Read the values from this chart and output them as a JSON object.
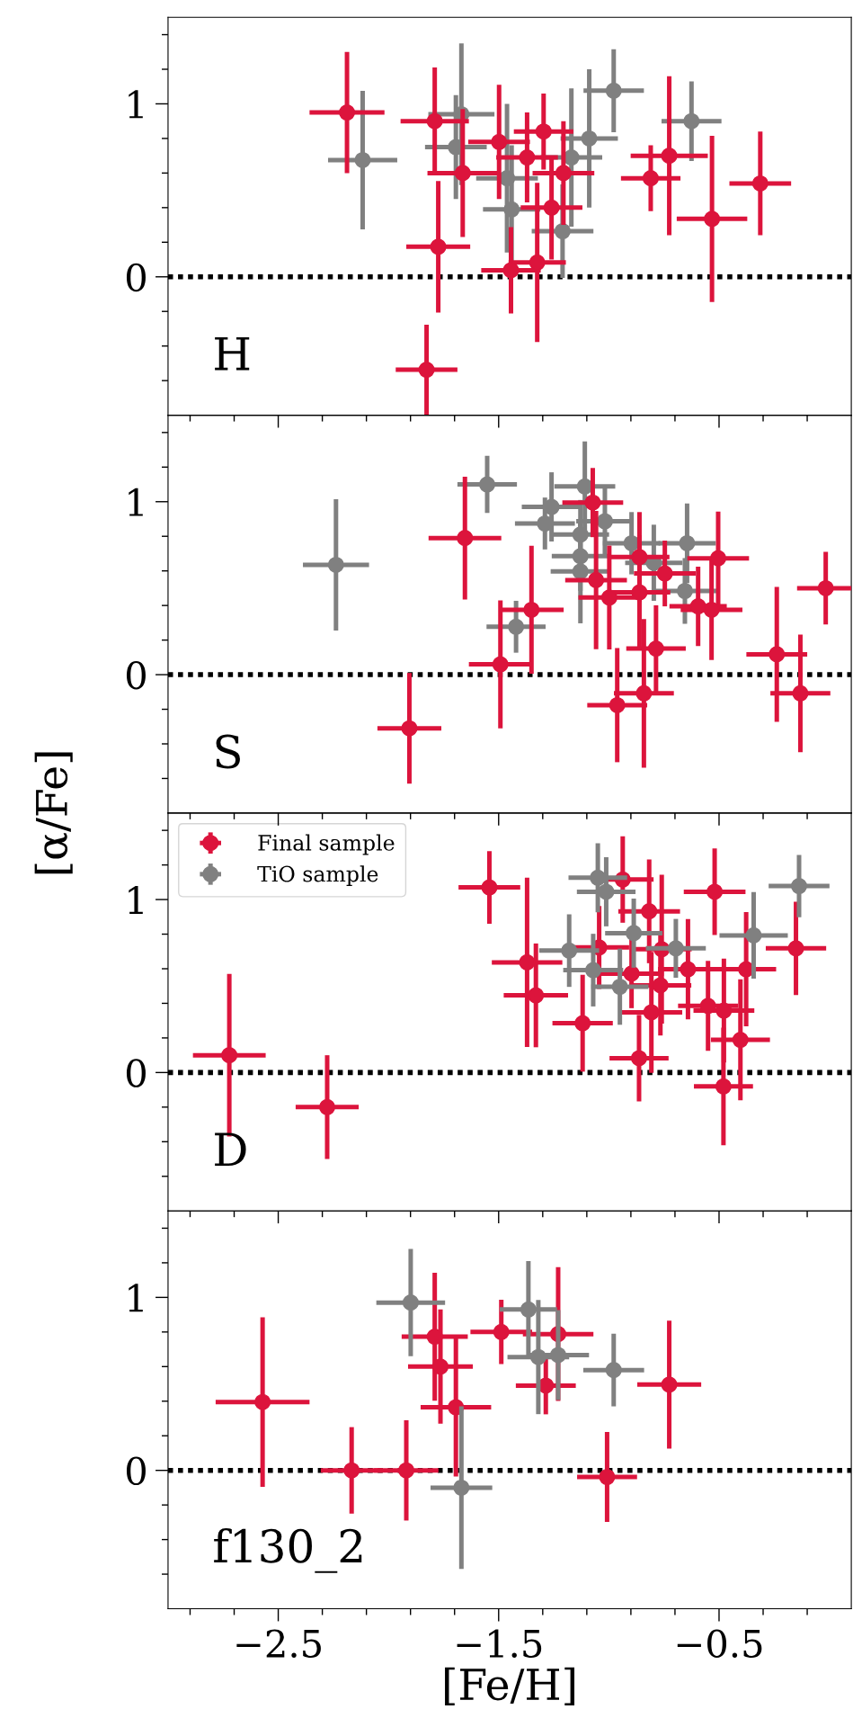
{
  "chart_data": [
    {
      "type": "scatter",
      "annotations": [
        "H"
      ],
      "xlim": [
        -3.0,
        0.1
      ],
      "ylim": [
        -0.8,
        1.5
      ],
      "tick_labels": "y",
      "marker": "circle",
      "xticks": [
        {
          "value": -2.9,
          "label": null
        },
        {
          "value": -2.7,
          "label": null
        },
        -2.5,
        {
          "value": -2.3,
          "label": null
        },
        {
          "value": -2.1,
          "label": null
        },
        {
          "value": -1.9,
          "label": null
        },
        {
          "value": -1.7,
          "label": null
        },
        -1.5,
        {
          "value": -1.3,
          "label": null
        },
        {
          "value": -1.1,
          "label": null
        },
        {
          "value": -0.9,
          "label": null
        },
        {
          "value": -0.7,
          "label": null
        },
        -0.5,
        {
          "value": -0.3,
          "label": null
        },
        {
          "value": -0.1,
          "label": null
        }
      ],
      "yticks": [
        {
          "value": -0.6,
          "label": null
        },
        {
          "value": -0.4,
          "label": null
        },
        {
          "value": -0.2,
          "label": null
        },
        0,
        {
          "value": 0.2,
          "label": null
        },
        {
          "value": 0.4,
          "label": null
        },
        {
          "value": 0.6,
          "label": null
        },
        {
          "value": 0.8,
          "label": null
        },
        1,
        {
          "value": 1.2,
          "label": null
        },
        {
          "value": 1.4,
          "label": null
        }
      ],
      "ref_lines": [
        {
          "axis": "y",
          "value": 0,
          "color": "#000000",
          "line_style": "dotted"
        }
      ],
      "series": [
        {
          "color": "#808080",
          "x": [
            -2.117,
            -1.669,
            -1.694,
            -1.441,
            -1.462,
            -1.17,
            -1.089,
            -0.978,
            -0.625,
            -1.21
          ],
          "values": [
            0.675,
            0.94,
            0.75,
            0.39,
            0.57,
            0.69,
            0.8,
            1.076,
            0.9,
            0.264
          ],
          "errors": [
            0.4,
            0.41,
            0.3,
            0.37,
            0.43,
            0.4,
            0.4,
            0.24,
            0.23,
            0.27
          ],
          "xerrors": [
            0.157,
            0.15,
            0.14,
            0.13,
            0.14,
            0.14,
            0.13,
            0.137,
            0.136,
            0.14
          ]
        },
        {
          "color": "#dc143c",
          "x": [
            -2.188,
            -1.79,
            -1.663,
            -1.774,
            -1.827,
            -1.498,
            -1.371,
            -1.296,
            -1.206,
            -1.26,
            -1.444,
            -1.325,
            -0.81,
            -0.726,
            -0.532,
            -0.313
          ],
          "values": [
            0.95,
            0.9,
            0.6,
            0.174,
            -0.537,
            0.78,
            0.69,
            0.84,
            0.6,
            0.4,
            0.038,
            0.083,
            0.57,
            0.7,
            0.335,
            0.54
          ],
          "errors": [
            0.35,
            0.31,
            0.37,
            0.38,
            0.26,
            0.33,
            0.26,
            0.22,
            0.3,
            0.3,
            0.25,
            0.46,
            0.19,
            0.46,
            0.48,
            0.3
          ],
          "xerrors": [
            0.17,
            0.155,
            0.16,
            0.145,
            0.14,
            0.14,
            0.14,
            0.135,
            0.14,
            0.14,
            0.135,
            0.13,
            0.135,
            0.175,
            0.16,
            0.14
          ]
        }
      ]
    },
    {
      "type": "scatter",
      "annotations": [
        "S"
      ],
      "xlim": [
        -3.0,
        0.1
      ],
      "ylim": [
        -0.8,
        1.5
      ],
      "tick_labels": "y",
      "marker": "circle",
      "xticks": [
        {
          "value": -2.9,
          "label": null
        },
        {
          "value": -2.7,
          "label": null
        },
        -2.5,
        {
          "value": -2.3,
          "label": null
        },
        {
          "value": -2.1,
          "label": null
        },
        {
          "value": -1.9,
          "label": null
        },
        {
          "value": -1.7,
          "label": null
        },
        -1.5,
        {
          "value": -1.3,
          "label": null
        },
        {
          "value": -1.1,
          "label": null
        },
        {
          "value": -0.9,
          "label": null
        },
        {
          "value": -0.7,
          "label": null
        },
        -0.5,
        {
          "value": -0.3,
          "label": null
        },
        {
          "value": -0.1,
          "label": null
        }
      ],
      "yticks": [
        {
          "value": -0.6,
          "label": null
        },
        {
          "value": -0.4,
          "label": null
        },
        {
          "value": -0.2,
          "label": null
        },
        0,
        {
          "value": 0.2,
          "label": null
        },
        {
          "value": 0.4,
          "label": null
        },
        {
          "value": 0.6,
          "label": null
        },
        {
          "value": 0.8,
          "label": null
        },
        1,
        {
          "value": 1.2,
          "label": null
        },
        {
          "value": 1.4,
          "label": null
        }
      ],
      "ref_lines": [
        {
          "axis": "y",
          "value": 0,
          "color": "#000000",
          "line_style": "dotted"
        }
      ],
      "series": [
        {
          "color": "#808080",
          "x": [
            -2.238,
            -1.552,
            -1.421,
            -1.26,
            -1.29,
            -1.109,
            -1.129,
            -1.129,
            -1.129,
            -1.018,
            -0.897,
            -0.796,
            -0.645,
            -0.655
          ],
          "values": [
            0.635,
            1.1,
            0.277,
            0.97,
            0.874,
            1.088,
            0.81,
            0.685,
            0.597,
            0.887,
            0.76,
            0.647,
            0.76,
            0.484
          ],
          "errors": [
            0.38,
            0.165,
            0.15,
            0.2,
            0.15,
            0.26,
            0.2,
            0.2,
            0.3,
            0.19,
            0.18,
            0.22,
            0.23,
            0.19
          ],
          "xerrors": [
            0.15,
            0.135,
            0.134,
            0.135,
            0.136,
            0.138,
            0.13,
            0.13,
            0.135,
            0.13,
            0.13,
            0.13,
            0.13,
            0.15
          ]
        },
        {
          "color": "#dc143c",
          "x": [
            -1.653,
            -1.905,
            -1.492,
            -1.351,
            -1.073,
            -1.058,
            -0.998,
            -0.861,
            -0.861,
            -0.746,
            -0.786,
            -0.962,
            -0.841,
            -0.504,
            -0.595,
            -0.534,
            -0.238,
            -0.131,
            -0.016
          ],
          "values": [
            0.79,
            -0.31,
            0.06,
            0.375,
            0.995,
            0.547,
            0.446,
            0.68,
            0.476,
            0.585,
            0.151,
            -0.176,
            -0.108,
            0.673,
            0.395,
            0.375,
            0.118,
            -0.108,
            0.5
          ],
          "errors": [
            0.355,
            0.32,
            0.37,
            0.37,
            0.2,
            0.4,
            0.3,
            0.26,
            0.33,
            0.19,
            0.25,
            0.33,
            0.43,
            0.27,
            0.23,
            0.29,
            0.39,
            0.34,
            0.21
          ],
          "xerrors": [
            0.165,
            0.145,
            0.143,
            0.146,
            0.138,
            0.14,
            0.14,
            0.136,
            0.14,
            0.14,
            0.135,
            0.136,
            0.136,
            0.14,
            0.13,
            0.14,
            0.138,
            0.136,
            0.13
          ]
        }
      ]
    },
    {
      "type": "scatter",
      "annotations": [
        "D"
      ],
      "ylabel": "[α/Fe]",
      "xlim": [
        -3.0,
        0.1
      ],
      "ylim": [
        -0.8,
        1.5
      ],
      "tick_labels": "y",
      "marker": "circle",
      "legend": "top left",
      "xticks": [
        {
          "value": -2.9,
          "label": null
        },
        {
          "value": -2.7,
          "label": null
        },
        -2.5,
        {
          "value": -2.3,
          "label": null
        },
        {
          "value": -2.1,
          "label": null
        },
        {
          "value": -1.9,
          "label": null
        },
        {
          "value": -1.7,
          "label": null
        },
        -1.5,
        {
          "value": -1.3,
          "label": null
        },
        {
          "value": -1.1,
          "label": null
        },
        {
          "value": -0.9,
          "label": null
        },
        {
          "value": -0.7,
          "label": null
        },
        -0.5,
        {
          "value": -0.3,
          "label": null
        },
        {
          "value": -0.1,
          "label": null
        }
      ],
      "yticks": [
        {
          "value": -0.6,
          "label": null
        },
        {
          "value": -0.4,
          "label": null
        },
        {
          "value": -0.2,
          "label": null
        },
        0,
        {
          "value": 0.2,
          "label": null
        },
        {
          "value": 0.4,
          "label": null
        },
        {
          "value": 0.6,
          "label": null
        },
        {
          "value": 0.8,
          "label": null
        },
        1,
        {
          "value": 1.2,
          "label": null
        },
        {
          "value": 1.4,
          "label": null
        }
      ],
      "ref_lines": [
        {
          "axis": "y",
          "value": 0,
          "color": "#000000",
          "line_style": "dotted"
        }
      ],
      "series": [
        {
          "name": "Final sample",
          "color": "#dc143c",
          "x": [
            -2.722,
            -2.278,
            -1.542,
            -1.371,
            -1.331,
            -1.119,
            -1.044,
            -0.937,
            -0.817,
            -0.897,
            -0.76,
            -0.766,
            -0.807,
            -0.863,
            -0.641,
            -0.52,
            -0.55,
            -0.478,
            -0.377,
            -0.403,
            -0.48,
            -0.151
          ],
          "values": [
            0.1,
            -0.2,
            1.07,
            0.637,
            0.446,
            0.285,
            0.723,
            1.116,
            0.932,
            0.572,
            0.713,
            0.504,
            0.348,
            0.083,
            0.597,
            1.045,
            0.385,
            0.358,
            0.597,
            0.189,
            -0.08,
            0.718
          ],
          "errors": [
            0.47,
            0.3,
            0.21,
            0.49,
            0.3,
            0.28,
            0.24,
            0.25,
            0.3,
            0.2,
            0.43,
            0.29,
            0.35,
            0.25,
            0.29,
            0.25,
            0.26,
            0.3,
            0.33,
            0.35,
            0.34,
            0.27
          ],
          "xerrors": [
            0.165,
            0.143,
            0.14,
            0.16,
            0.146,
            0.137,
            0.136,
            0.14,
            0.14,
            0.146,
            0.136,
            0.14,
            0.14,
            0.134,
            0.136,
            0.14,
            0.136,
            0.138,
            0.136,
            0.134,
            0.134,
            0.137
          ]
        },
        {
          "name": "TiO sample",
          "color": "#808080",
          "x": [
            -1.18,
            -1.05,
            -1.012,
            -1.071,
            -0.95,
            -0.887,
            -0.696,
            -0.343,
            -0.137
          ],
          "values": [
            0.705,
            1.126,
            1.045,
            0.592,
            0.496,
            0.806,
            0.718,
            0.793,
            1.078
          ],
          "errors": [
            0.21,
            0.2,
            0.2,
            0.21,
            0.22,
            0.2,
            0.17,
            0.25,
            0.18
          ],
          "xerrors": [
            0.136,
            0.133,
            0.133,
            0.136,
            0.13,
            0.13,
            0.136,
            0.155,
            0.138
          ]
        }
      ]
    },
    {
      "type": "scatter",
      "annotations": [
        "f130_2"
      ],
      "xlabel": "[Fe/H]",
      "xlim": [
        -3.0,
        0.1
      ],
      "ylim": [
        -0.8,
        1.5
      ],
      "marker": "circle",
      "xticks": [
        {
          "value": -2.9,
          "label": null
        },
        {
          "value": -2.7,
          "label": null
        },
        {
          "value": -2.5,
          "label": "−2.5"
        },
        {
          "value": -2.3,
          "label": null
        },
        {
          "value": -2.1,
          "label": null
        },
        {
          "value": -1.9,
          "label": null
        },
        {
          "value": -1.7,
          "label": null
        },
        {
          "value": -1.5,
          "label": "−1.5"
        },
        {
          "value": -1.3,
          "label": null
        },
        {
          "value": -1.1,
          "label": null
        },
        {
          "value": -0.9,
          "label": null
        },
        {
          "value": -0.7,
          "label": null
        },
        {
          "value": -0.5,
          "label": "−0.5"
        },
        {
          "value": -0.3,
          "label": null
        },
        {
          "value": -0.1,
          "label": null
        }
      ],
      "yticks": [
        {
          "value": -0.6,
          "label": null
        },
        {
          "value": -0.4,
          "label": null
        },
        {
          "value": -0.2,
          "label": null
        },
        0,
        {
          "value": 0.2,
          "label": null
        },
        {
          "value": 0.4,
          "label": null
        },
        {
          "value": 0.6,
          "label": null
        },
        {
          "value": 0.8,
          "label": null
        },
        1,
        {
          "value": 1.2,
          "label": null
        },
        {
          "value": 1.4,
          "label": null
        }
      ],
      "ref_lines": [
        {
          "axis": "y",
          "value": 0,
          "color": "#000000",
          "line_style": "dotted"
        }
      ],
      "series": [
        {
          "color": "#dc143c",
          "x": [
            -2.571,
            -2.167,
            -1.919,
            -1.79,
            -1.764,
            -1.694,
            -1.488,
            -1.23,
            -1.286,
            -1.008,
            -0.726
          ],
          "values": [
            0.395,
            0,
            0,
            0.773,
            0.6,
            0.365,
            0.8,
            0.788,
            0.49,
            -0.038,
            0.496
          ],
          "errors": [
            0.49,
            0.25,
            0.29,
            0.37,
            0.33,
            0.4,
            0.186,
            0.387,
            0.166,
            0.26,
            0.37
          ],
          "xerrors": [
            0.213,
            0.14,
            0.146,
            0.15,
            0.147,
            0.16,
            0.14,
            0.16,
            0.136,
            0.136,
            0.145
          ]
        },
        {
          "color": "#808080",
          "x": [
            -1.899,
            -1.365,
            -1.32,
            -1.23,
            -0.978,
            -1.669
          ],
          "values": [
            0.97,
            0.93,
            0.655,
            0.667,
            0.58,
            -0.1
          ],
          "errors": [
            0.31,
            0.28,
            0.33,
            0.26,
            0.21,
            0.47
          ],
          "xerrors": [
            0.156,
            0.13,
            0.14,
            0.14,
            0.138,
            0.14
          ]
        }
      ]
    }
  ]
}
